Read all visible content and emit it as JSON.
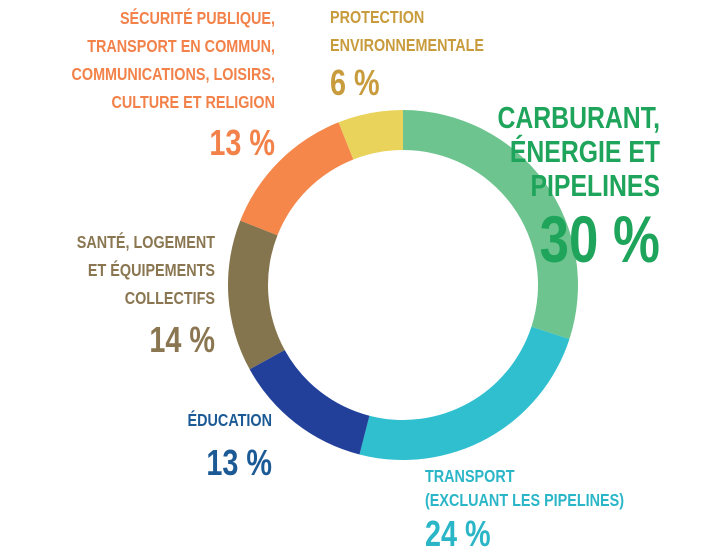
{
  "chart_data": {
    "type": "donut",
    "categories": [
      [
        "CARBURANT,",
        "ÉNERGIE ET",
        "PIPELINES"
      ],
      [
        "TRANSPORT",
        "(EXCLUANT LES PIPELINES)"
      ],
      [
        "ÉDUCATION"
      ],
      [
        "SANTÉ, LOGEMENT",
        "ET ÉQUIPEMENTS",
        "COLLECTIFS"
      ],
      [
        "SÉCURITÉ PUBLIQUE,",
        "TRANSPORT EN COMMUN,",
        "COMMUNICATIONS, LOISIRS,",
        "CULTURE ET RELIGION"
      ],
      [
        "PROTECTION",
        "ENVIRONNEMENTALE"
      ]
    ],
    "values": [
      30,
      24,
      13,
      14,
      13,
      6
    ],
    "value_labels": [
      "30 %",
      "24 %",
      "13 %",
      "14 %",
      "13 %",
      "6 %"
    ],
    "colors": [
      "#6ec48f",
      "#2fbfcf",
      "#22409a",
      "#85754e",
      "#f5874a",
      "#e9d35a"
    ],
    "label_colors": [
      "#1ea45b",
      "#2bb6c8",
      "#1c5a96",
      "#8a7651",
      "#f2824a",
      "#c89b3c"
    ]
  }
}
